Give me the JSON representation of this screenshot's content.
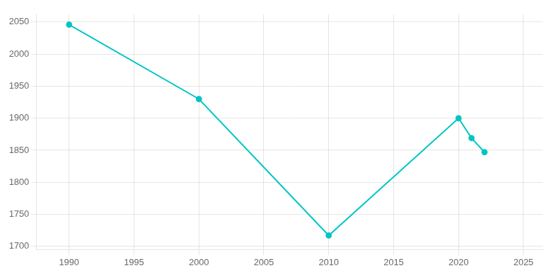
{
  "chart_data": {
    "type": "line",
    "x": [
      1990,
      2000,
      2010,
      2020,
      2021,
      2022
    ],
    "values": [
      2046,
      1930,
      1717,
      1900,
      1869,
      1847
    ],
    "color": "#00C5C5",
    "marker": "circle",
    "xlim": [
      1987.5,
      2026.5
    ],
    "ylim": [
      1695,
      2062
    ],
    "xticks": [
      1990,
      1995,
      2000,
      2005,
      2010,
      2015,
      2020,
      2025
    ],
    "yticks": [
      1700,
      1750,
      1800,
      1850,
      1900,
      1950,
      2000,
      2050
    ],
    "grid": true
  }
}
